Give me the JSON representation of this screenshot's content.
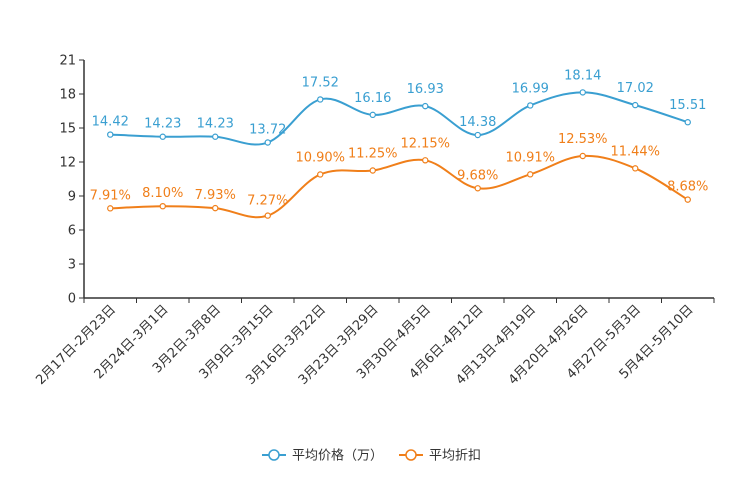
{
  "chart_data": {
    "type": "line",
    "title": "",
    "xlabel": "",
    "ylabel": "",
    "ylim": [
      0,
      21
    ],
    "yticks": [
      0,
      3,
      6,
      9,
      12,
      15,
      18,
      21
    ],
    "categories": [
      "2月17日-2月23日",
      "2月24日-3月1日",
      "3月2日-3月8日",
      "3月9日-3月15日",
      "3月16日-3月22日",
      "3月23日-3月29日",
      "3月30日-4月5日",
      "4月6日-4月12日",
      "4月13日-4月19日",
      "4月20日-4月26日",
      "4月27日-5月3日",
      "5月4日-5月10日"
    ],
    "series": [
      {
        "name": "平均价格（万）",
        "color": "#3a9fd1",
        "values": [
          14.42,
          14.23,
          14.23,
          13.72,
          17.52,
          16.16,
          16.93,
          14.38,
          16.99,
          18.14,
          17.02,
          15.51
        ],
        "labels": [
          "14.42",
          "14.23",
          "14.23",
          "13.72",
          "17.52",
          "16.16",
          "16.93",
          "14.38",
          "16.99",
          "18.14",
          "17.02",
          "15.51"
        ]
      },
      {
        "name": "平均折扣",
        "color": "#f07f1a",
        "values": [
          7.91,
          8.1,
          7.93,
          7.27,
          10.9,
          11.25,
          12.15,
          9.68,
          10.91,
          12.53,
          11.44,
          8.68
        ],
        "labels": [
          "7.91%",
          "8.10%",
          "7.93%",
          "7.27%",
          "10.90%",
          "11.25%",
          "12.15%",
          "9.68%",
          "10.91%",
          "12.53%",
          "11.44%",
          "8.68%"
        ]
      }
    ],
    "legend_position": "bottom-center",
    "grid": false
  }
}
